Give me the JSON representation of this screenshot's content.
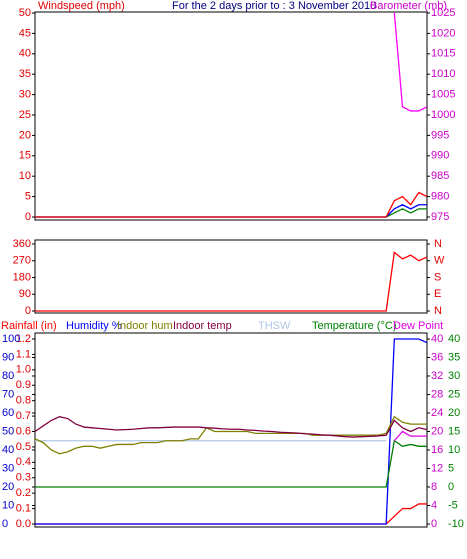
{
  "chart_data": [
    {
      "type": "line",
      "title": "For the 2 days prior to : 3 November 2010",
      "y_label": "Windspeed (mph)",
      "y2_label": "Barometer (mb)",
      "y_color": "#e00000",
      "y2_color": "#cc00cc",
      "categories": [
        null,
        null,
        null,
        null,
        null,
        null,
        null,
        null,
        null,
        null,
        null,
        null,
        null,
        null,
        null,
        null,
        null,
        null,
        null,
        null,
        null,
        null,
        null,
        null,
        null,
        null,
        null,
        null,
        null,
        null,
        null,
        null,
        null,
        null,
        null,
        null,
        null,
        null,
        null,
        null,
        null,
        null,
        null,
        null,
        null,
        null,
        null,
        null,
        null
      ],
      "ylim": [
        0,
        50
      ],
      "yticks": [
        0,
        5,
        10,
        15,
        20,
        25,
        30,
        35,
        40,
        45,
        50
      ],
      "y2lim": [
        975,
        1025
      ],
      "y2ticks": [
        975,
        980,
        985,
        990,
        995,
        1000,
        1005,
        1010,
        1015,
        1020,
        1025
      ],
      "series": [
        {
          "color": "#008000",
          "values": [
            0,
            0,
            0,
            0,
            0,
            0,
            0,
            0,
            0,
            0,
            0,
            0,
            0,
            0,
            0,
            0,
            0,
            0,
            0,
            0,
            0,
            0,
            0,
            0,
            0,
            0,
            0,
            0,
            0,
            0,
            0,
            0,
            0,
            0,
            0,
            0,
            0,
            0,
            0,
            0,
            0,
            0,
            0,
            0,
            1,
            2,
            1,
            2,
            2
          ]
        },
        {
          "color": "#0000ff",
          "values": [
            0,
            0,
            0,
            0,
            0,
            0,
            0,
            0,
            0,
            0,
            0,
            0,
            0,
            0,
            0,
            0,
            0,
            0,
            0,
            0,
            0,
            0,
            0,
            0,
            0,
            0,
            0,
            0,
            0,
            0,
            0,
            0,
            0,
            0,
            0,
            0,
            0,
            0,
            0,
            0,
            0,
            0,
            0,
            0,
            2,
            3,
            2,
            3,
            3
          ]
        },
        {
          "color": "#ff0000",
          "values": [
            0,
            0,
            0,
            0,
            0,
            0,
            0,
            0,
            0,
            0,
            0,
            0,
            0,
            0,
            0,
            0,
            0,
            0,
            0,
            0,
            0,
            0,
            0,
            0,
            0,
            0,
            0,
            0,
            0,
            0,
            0,
            0,
            0,
            0,
            0,
            0,
            0,
            0,
            0,
            0,
            0,
            0,
            0,
            0,
            4,
            5,
            3,
            6,
            5
          ]
        },
        {
          "color": "#ff00ff",
          "axis": "y2",
          "values": [
            null,
            null,
            null,
            null,
            null,
            null,
            null,
            null,
            null,
            null,
            null,
            null,
            null,
            null,
            null,
            null,
            null,
            null,
            null,
            null,
            null,
            null,
            null,
            null,
            null,
            null,
            null,
            null,
            null,
            null,
            null,
            null,
            null,
            null,
            null,
            null,
            null,
            null,
            null,
            null,
            null,
            null,
            null,
            null,
            1025,
            1002,
            1001,
            1001,
            1002
          ]
        }
      ]
    },
    {
      "type": "line",
      "y_color": "#e00000",
      "y2_color": "#e00000",
      "categories": [
        null,
        null,
        null,
        null,
        null,
        null,
        null,
        null,
        null,
        null,
        null,
        null,
        null,
        null,
        null,
        null,
        null,
        null,
        null,
        null,
        null,
        null,
        null,
        null,
        null,
        null,
        null,
        null,
        null,
        null,
        null,
        null,
        null,
        null,
        null,
        null,
        null,
        null,
        null,
        null,
        null,
        null,
        null,
        null,
        null,
        null,
        null,
        null,
        null
      ],
      "ylim": [
        0,
        360
      ],
      "yticks": [
        0,
        90,
        180,
        270,
        360
      ],
      "y2lim": [
        0,
        360
      ],
      "y2ticks": [
        {
          "value": 0,
          "label": "N"
        },
        {
          "value": 90,
          "label": "E"
        },
        {
          "value": 180,
          "label": "S"
        },
        {
          "value": 270,
          "label": "W"
        },
        {
          "value": 360,
          "label": "N"
        }
      ],
      "series": [
        {
          "color": "#ff0000",
          "values": [
            0,
            0,
            0,
            0,
            0,
            0,
            0,
            0,
            0,
            0,
            0,
            0,
            0,
            0,
            0,
            0,
            0,
            0,
            0,
            0,
            0,
            0,
            0,
            0,
            0,
            0,
            0,
            0,
            0,
            0,
            0,
            0,
            0,
            0,
            0,
            0,
            0,
            0,
            0,
            0,
            0,
            0,
            0,
            0,
            315,
            280,
            300,
            270,
            290
          ]
        }
      ]
    },
    {
      "type": "line",
      "y_color": "#e00000",
      "y2_color": "#cc00cc",
      "y3_color": "#0000cc",
      "y4_color": "#008000",
      "categories": [
        null,
        null,
        null,
        null,
        null,
        null,
        null,
        null,
        null,
        null,
        null,
        null,
        null,
        null,
        null,
        null,
        null,
        null,
        null,
        null,
        null,
        null,
        null,
        null,
        null,
        null,
        null,
        null,
        null,
        null,
        null,
        null,
        null,
        null,
        null,
        null,
        null,
        null,
        null,
        null,
        null,
        null,
        null,
        null,
        null,
        null,
        null,
        null,
        null
      ],
      "ylim": [
        0,
        1.2
      ],
      "yticks": [
        {
          "value": 0,
          "label": "0.0"
        },
        0.1,
        0.2,
        0.3,
        0.4,
        0.5,
        0.6,
        0.7,
        0.8,
        0.9,
        {
          "value": 1,
          "label": "1.0"
        },
        1.1,
        1.2
      ],
      "y2lim": [
        0,
        40
      ],
      "y2ticks": [
        0,
        4,
        8,
        12,
        16,
        20,
        24,
        28,
        32,
        36,
        40
      ],
      "y3lim": [
        0,
        100
      ],
      "y3ticks": [
        0,
        10,
        20,
        30,
        40,
        50,
        60,
        70,
        80,
        90,
        100
      ],
      "y4lim": [
        -10,
        40
      ],
      "y4ticks": [
        -10,
        -5,
        0,
        5,
        10,
        15,
        20,
        25,
        30,
        35,
        40
      ],
      "series": [
        {
          "name": "Rainfall (in)",
          "color": "#ff0000",
          "values": [
            0,
            0,
            0,
            0,
            0,
            0,
            0,
            0,
            0,
            0,
            0,
            0,
            0,
            0,
            0,
            0,
            0,
            0,
            0,
            0,
            0,
            0,
            0,
            0,
            0,
            0,
            0,
            0,
            0,
            0,
            0,
            0,
            0,
            0,
            0,
            0,
            0,
            0,
            0,
            0,
            0,
            0,
            0,
            0,
            0.05,
            0.1,
            0.1,
            0.13,
            0.13
          ]
        },
        {
          "name": "Humidity %",
          "color": "#0000ff",
          "axis": "y3",
          "values": [
            0,
            0,
            0,
            0,
            0,
            0,
            0,
            0,
            0,
            0,
            0,
            0,
            0,
            0,
            0,
            0,
            0,
            0,
            0,
            0,
            0,
            0,
            0,
            0,
            0,
            0,
            0,
            0,
            0,
            0,
            0,
            0,
            0,
            0,
            0,
            0,
            0,
            0,
            0,
            0,
            0,
            0,
            0,
            0,
            100,
            100,
            100,
            100,
            98
          ]
        },
        {
          "name": "Indoor hum",
          "color": "#808000",
          "axis": "y3",
          "values": [
            46,
            44,
            40,
            38,
            39,
            41,
            42,
            42,
            41,
            42,
            43,
            43,
            43,
            44,
            44,
            44,
            45,
            45,
            45,
            46,
            46,
            52,
            50,
            50,
            50,
            50,
            50,
            49,
            49,
            49,
            49,
            49,
            49,
            49,
            48,
            48,
            48,
            48,
            48,
            48,
            48,
            48,
            48,
            49,
            58,
            55,
            54,
            54,
            54
          ]
        },
        {
          "name": "Indoor temp",
          "color": "#800040",
          "axis": "y4",
          "values": [
            15,
            16.5,
            18,
            19,
            18.5,
            17,
            16.2,
            16,
            15.8,
            15.6,
            15.4,
            15.5,
            15.6,
            15.8,
            16,
            16,
            16.1,
            16.2,
            16.2,
            16.2,
            16.2,
            16,
            15.9,
            15.7,
            15.6,
            15.6,
            15.4,
            15.3,
            15.1,
            15,
            14.8,
            14.7,
            14.6,
            14.4,
            14.3,
            14.1,
            14,
            13.8,
            13.6,
            13.5,
            13.6,
            13.7,
            13.8,
            14,
            18,
            16,
            15,
            16,
            15.5
          ]
        },
        {
          "name": "THSW",
          "color": "#b0c8e8",
          "axis": "y4",
          "values": [
            12.5,
            12.5,
            12.5,
            12.5,
            12.5,
            12.5,
            12.5,
            12.5,
            12.5,
            12.5,
            12.5,
            12.5,
            12.5,
            12.5,
            12.5,
            12.5,
            12.5,
            12.5,
            12.5,
            12.5,
            12.5,
            12.5,
            12.5,
            12.5,
            12.5,
            12.5,
            12.5,
            12.5,
            12.5,
            12.5,
            12.5,
            12.5,
            12.5,
            12.5,
            12.5,
            12.5,
            12.5,
            12.5,
            12.5,
            12.5,
            12.5,
            12.5,
            12.5,
            12.5,
            null,
            null,
            null,
            null,
            null
          ]
        },
        {
          "name": "Temperature (°C)",
          "color": "#008000",
          "axis": "y4",
          "values": [
            0,
            0,
            0,
            0,
            0,
            0,
            0,
            0,
            0,
            0,
            0,
            0,
            0,
            0,
            0,
            0,
            0,
            0,
            0,
            0,
            0,
            0,
            0,
            0,
            0,
            0,
            0,
            0,
            0,
            0,
            0,
            0,
            0,
            0,
            0,
            0,
            0,
            0,
            0,
            0,
            0,
            0,
            0,
            0,
            12.5,
            11,
            11.5,
            11,
            11
          ]
        },
        {
          "name": "Dew Point",
          "color": "#e000e0",
          "axis": "y2",
          "values": [
            null,
            null,
            null,
            null,
            null,
            null,
            null,
            null,
            null,
            null,
            null,
            null,
            null,
            null,
            null,
            null,
            null,
            null,
            null,
            null,
            null,
            null,
            null,
            null,
            null,
            null,
            null,
            null,
            null,
            null,
            null,
            null,
            null,
            null,
            null,
            null,
            null,
            null,
            null,
            null,
            null,
            null,
            null,
            null,
            18,
            20,
            19,
            19,
            19
          ]
        }
      ]
    }
  ]
}
